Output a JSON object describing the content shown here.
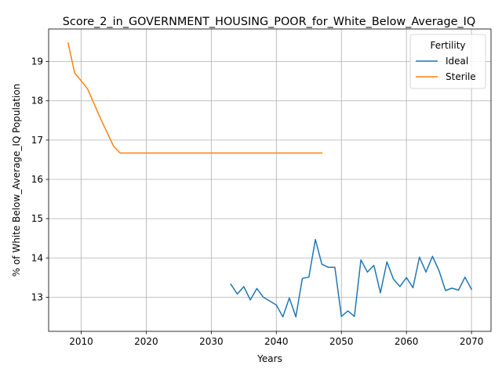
{
  "chart_data": {
    "type": "line",
    "title": "Score_2_in_GOVERNMENT_HOUSING_POOR_for_White_Below_Average_IQ",
    "xlabel": "Years",
    "ylabel": "% of White Below_Average_IQ Population",
    "xlim": [
      2005,
      2073
    ],
    "ylim": [
      12.13,
      19.83
    ],
    "x_ticks": [
      2010,
      2020,
      2030,
      2040,
      2050,
      2060,
      2070
    ],
    "x_tick_labels": [
      "2010",
      "2020",
      "2030",
      "2040",
      "2050",
      "2060",
      "2070"
    ],
    "y_ticks": [
      13,
      14,
      15,
      16,
      17,
      18,
      19
    ],
    "y_tick_labels": [
      "13",
      "14",
      "15",
      "16",
      "17",
      "18",
      "19"
    ],
    "grid": true,
    "legend": {
      "title": "Fertility",
      "placement": "top-right",
      "entries": [
        "Ideal",
        "Sterile"
      ]
    },
    "series": [
      {
        "name": "Ideal",
        "color": "#1f77b4",
        "x": [
          2033,
          2034,
          2035,
          2036,
          2037,
          2038,
          2039,
          2040,
          2041,
          2042,
          2043,
          2044,
          2045,
          2046,
          2047,
          2048,
          2049,
          2050,
          2051,
          2052,
          2053,
          2054,
          2055,
          2056,
          2057,
          2058,
          2059,
          2060,
          2061,
          2062,
          2063,
          2064,
          2065,
          2066,
          2067,
          2068,
          2069,
          2070
        ],
        "y": [
          13.33,
          13.08,
          13.27,
          12.93,
          13.22,
          13.0,
          12.9,
          12.8,
          12.5,
          12.98,
          12.5,
          13.48,
          13.51,
          14.47,
          13.84,
          13.76,
          13.76,
          12.51,
          12.65,
          12.51,
          13.95,
          13.64,
          13.81,
          13.11,
          13.9,
          13.46,
          13.27,
          13.5,
          13.24,
          14.02,
          13.64,
          14.04,
          13.68,
          13.17,
          13.23,
          13.18,
          13.51,
          13.2
        ]
      },
      {
        "name": "Sterile",
        "color": "#ff7f0e",
        "x": [
          2008,
          2009,
          2010,
          2011,
          2012,
          2013,
          2014,
          2015,
          2016,
          2017,
          2018,
          2019,
          2020,
          2021,
          2022,
          2023,
          2024,
          2025,
          2026,
          2027,
          2028,
          2029,
          2030,
          2031,
          2032,
          2033,
          2034,
          2035,
          2036,
          2037,
          2038,
          2039,
          2040,
          2041,
          2042,
          2043,
          2044,
          2045,
          2046,
          2047
        ],
        "y": [
          19.47,
          18.71,
          18.51,
          18.3,
          17.92,
          17.54,
          17.19,
          16.84,
          16.67,
          16.67,
          16.67,
          16.67,
          16.67,
          16.67,
          16.67,
          16.67,
          16.67,
          16.67,
          16.67,
          16.67,
          16.67,
          16.67,
          16.67,
          16.67,
          16.67,
          16.67,
          16.67,
          16.67,
          16.67,
          16.67,
          16.67,
          16.67,
          16.67,
          16.67,
          16.67,
          16.67,
          16.67,
          16.67,
          16.67,
          16.67
        ]
      }
    ]
  }
}
